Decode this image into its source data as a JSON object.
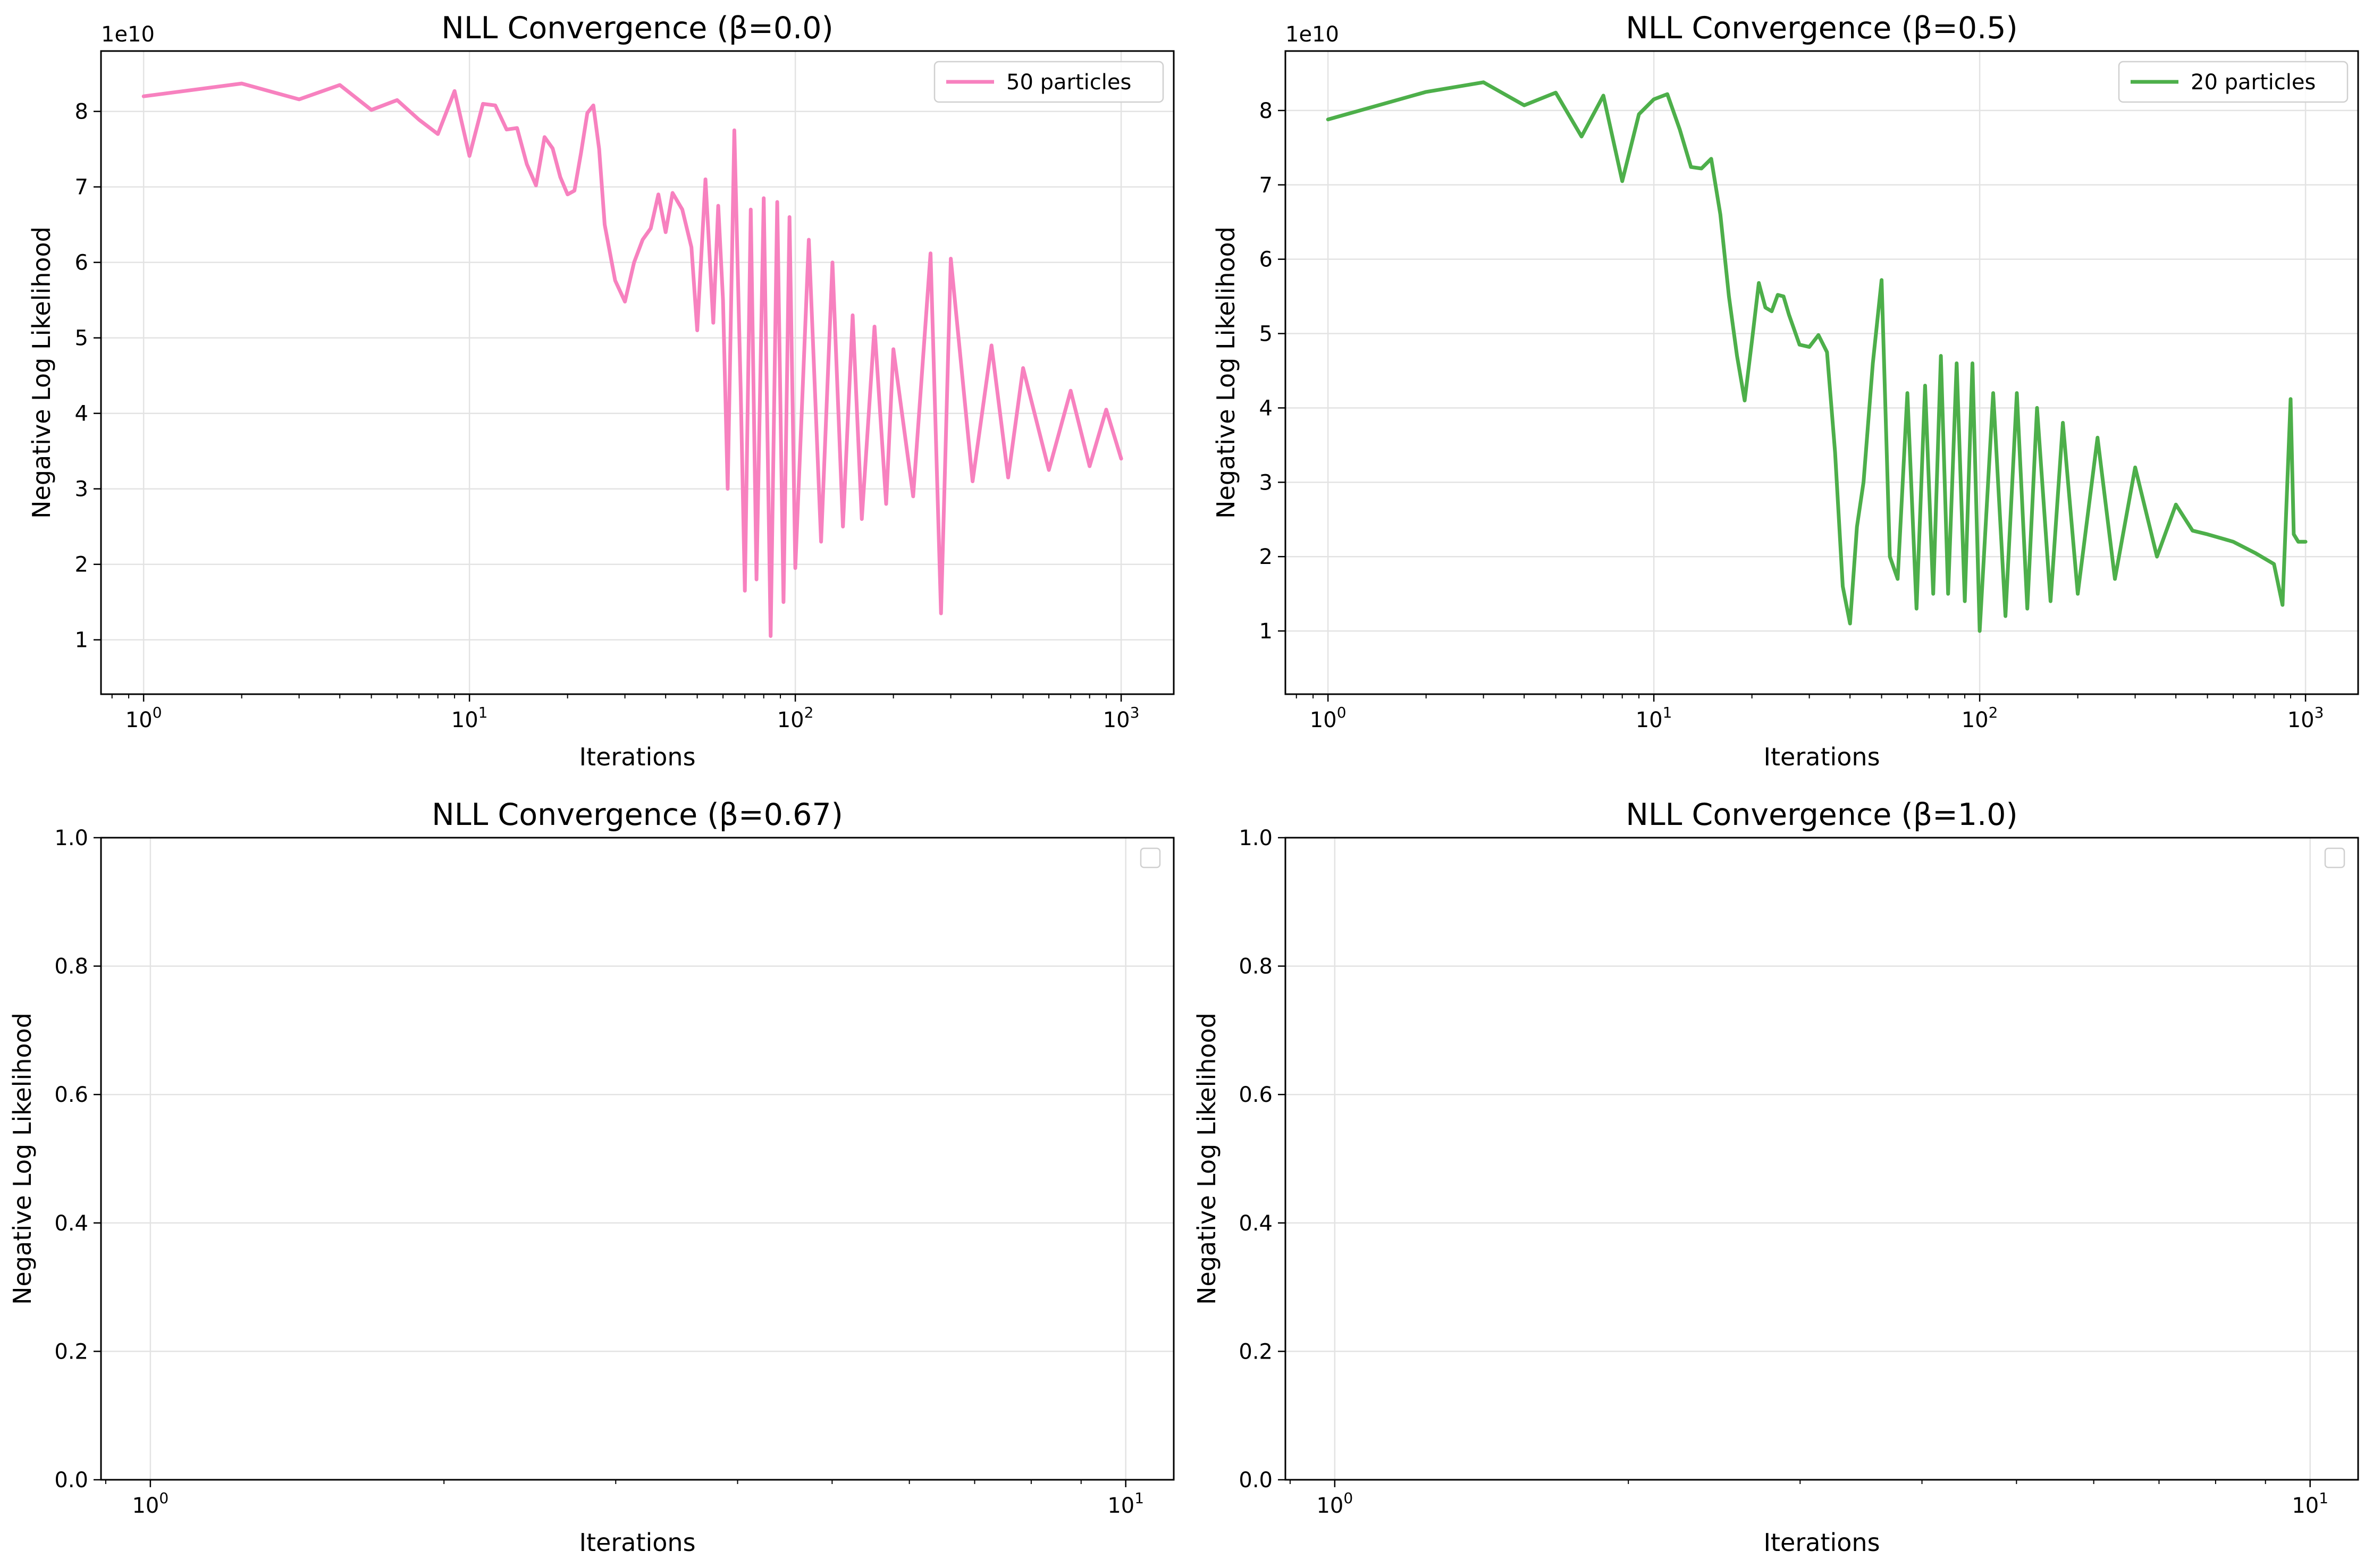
{
  "chart_data": [
    {
      "type": "line",
      "title": "NLL Convergence (β=0.0)",
      "xlabel": "Iterations",
      "ylabel": "Negative Log Likelihood",
      "xscale": "log",
      "xlim": [
        0.74,
        1450
      ],
      "ylim": [
        0.28,
        8.8
      ],
      "y_offset_text": "1e10",
      "grid": true,
      "legend_position": "top-right",
      "x_ticks": [
        "10^0",
        "10^1",
        "10^2",
        "10^3"
      ],
      "y_ticks": [
        "1",
        "2",
        "3",
        "4",
        "5",
        "6",
        "7",
        "8"
      ],
      "series": [
        {
          "name": "50 particles",
          "color": "#f781bf",
          "x_approx": [
            1,
            2,
            3,
            4,
            5,
            6,
            7,
            8,
            9,
            10,
            11,
            12,
            13,
            14,
            15,
            16,
            17,
            18,
            19,
            20,
            21,
            22,
            23,
            24,
            25,
            26,
            28,
            30,
            32,
            34,
            36,
            38,
            40,
            42,
            45,
            48,
            50,
            53,
            56,
            58,
            60,
            62,
            65,
            68,
            70,
            73,
            76,
            80,
            84,
            88,
            92,
            96,
            100,
            110,
            120,
            130,
            140,
            150,
            160,
            175,
            190,
            200,
            230,
            260,
            280,
            300,
            350,
            400,
            450,
            500,
            600,
            700,
            800,
            900,
            1000
          ],
          "values": [
            8.2,
            8.37,
            8.16,
            8.35,
            8.02,
            8.15,
            7.89,
            7.7,
            8.27,
            7.41,
            8.1,
            8.08,
            7.76,
            7.78,
            7.3,
            7.02,
            7.66,
            7.51,
            7.13,
            6.9,
            6.95,
            7.45,
            7.98,
            8.08,
            7.5,
            6.5,
            5.76,
            5.48,
            6.0,
            6.3,
            6.45,
            6.9,
            6.4,
            6.92,
            6.7,
            6.2,
            5.1,
            7.1,
            5.2,
            6.75,
            5.5,
            3.0,
            7.75,
            4.3,
            1.65,
            6.7,
            1.8,
            6.85,
            1.05,
            6.8,
            1.5,
            6.6,
            1.95,
            6.3,
            2.3,
            6.0,
            2.5,
            5.3,
            2.6,
            5.15,
            2.8,
            4.85,
            2.9,
            6.12,
            1.35,
            6.05,
            3.1,
            4.9,
            3.15,
            4.6,
            3.25,
            4.3,
            3.3,
            4.05,
            3.4
          ]
        }
      ]
    },
    {
      "type": "line",
      "title": "NLL Convergence (β=0.5)",
      "xlabel": "Iterations",
      "ylabel": "Negative Log Likelihood",
      "xscale": "log",
      "xlim": [
        0.74,
        1450
      ],
      "ylim": [
        0.15,
        8.8
      ],
      "y_offset_text": "1e10",
      "grid": true,
      "legend_position": "top-right",
      "x_ticks": [
        "10^0",
        "10^1",
        "10^2",
        "10^3"
      ],
      "y_ticks": [
        "1",
        "2",
        "3",
        "4",
        "5",
        "6",
        "7",
        "8"
      ],
      "series": [
        {
          "name": "20 particles",
          "color": "#4daf4a",
          "x_approx": [
            1,
            2,
            3,
            4,
            5,
            6,
            7,
            8,
            9,
            10,
            11,
            12,
            13,
            14,
            15,
            16,
            17,
            18,
            19,
            20,
            21,
            22,
            23,
            24,
            25,
            26,
            28,
            30,
            32,
            34,
            36,
            38,
            40,
            42,
            44,
            47,
            50,
            53,
            56,
            60,
            64,
            68,
            72,
            76,
            80,
            85,
            90,
            95,
            100,
            110,
            120,
            130,
            140,
            150,
            165,
            180,
            200,
            230,
            260,
            300,
            350,
            400,
            450,
            500,
            600,
            700,
            800,
            850,
            900,
            920,
            950,
            1000
          ],
          "values": [
            7.88,
            8.25,
            8.38,
            8.07,
            8.24,
            7.65,
            8.2,
            7.05,
            7.95,
            8.15,
            8.22,
            7.75,
            7.24,
            7.22,
            7.35,
            6.6,
            5.5,
            4.7,
            4.1,
            4.9,
            5.68,
            5.35,
            5.3,
            5.52,
            5.5,
            5.25,
            4.85,
            4.82,
            4.98,
            4.75,
            3.4,
            1.6,
            1.1,
            2.4,
            3.0,
            4.6,
            5.72,
            2.0,
            1.7,
            4.2,
            1.3,
            4.3,
            1.5,
            4.7,
            1.5,
            4.6,
            1.4,
            4.6,
            1.0,
            4.2,
            1.2,
            4.2,
            1.3,
            4.0,
            1.4,
            3.8,
            1.5,
            3.6,
            1.7,
            3.2,
            2.0,
            2.7,
            2.35,
            2.3,
            2.2,
            2.05,
            1.9,
            1.35,
            4.12,
            2.3,
            2.2,
            2.2
          ]
        }
      ]
    },
    {
      "type": "line",
      "title": "NLL Convergence (β=0.67)",
      "xlabel": "Iterations",
      "ylabel": "Negative Log Likelihood",
      "xscale": "log",
      "xlim": [
        0.89,
        11.2
      ],
      "ylim": [
        0,
        1
      ],
      "grid": true,
      "legend_position": "top-right",
      "x_ticks": [
        "10^0",
        "10^1"
      ],
      "y_ticks": [
        "0.0",
        "0.2",
        "0.4",
        "0.6",
        "0.8",
        "1.0"
      ],
      "series": []
    },
    {
      "type": "line",
      "title": "NLL Convergence (β=1.0)",
      "xlabel": "Iterations",
      "ylabel": "Negative Log Likelihood",
      "xscale": "log",
      "xlim": [
        0.89,
        11.2
      ],
      "ylim": [
        0,
        1
      ],
      "grid": true,
      "legend_position": "top-right",
      "x_ticks": [
        "10^0",
        "10^1"
      ],
      "y_ticks": [
        "0.0",
        "0.2",
        "0.4",
        "0.6",
        "0.8",
        "1.0"
      ],
      "series": []
    }
  ]
}
